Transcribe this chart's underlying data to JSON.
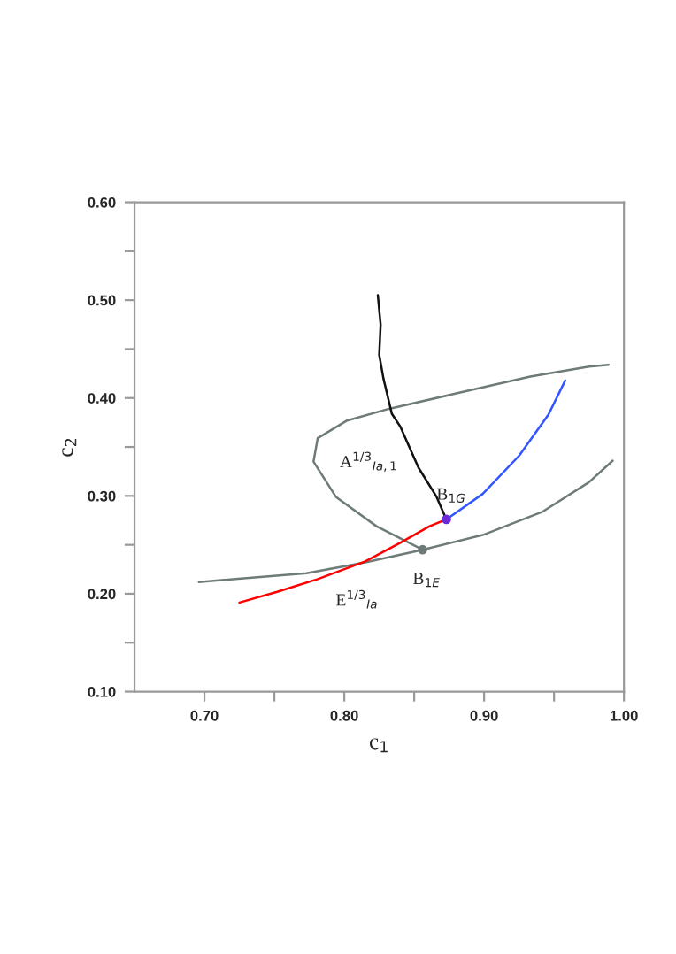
{
  "chart_data": {
    "type": "line",
    "xlabel": "c$_{1}$",
    "ylabel": "c$_{2}$",
    "xlim": [
      0.65,
      1.0
    ],
    "ylim": [
      0.1,
      0.6
    ],
    "xticks": [
      {
        "value": 0.7,
        "label": "0.70"
      },
      {
        "value": 0.75,
        "label": null
      },
      {
        "value": 0.8,
        "label": "0.80"
      },
      {
        "value": 0.85,
        "label": null
      },
      {
        "value": 0.9,
        "label": "0.90"
      },
      {
        "value": 0.95,
        "label": null
      },
      {
        "value": 1.0,
        "label": "1.00"
      }
    ],
    "yticks": [
      {
        "value": 0.1,
        "label": "0.10"
      },
      {
        "value": 0.15,
        "label": null
      },
      {
        "value": 0.2,
        "label": "0.20"
      },
      {
        "value": 0.25,
        "label": null
      },
      {
        "value": 0.3,
        "label": "0.30"
      },
      {
        "value": 0.35,
        "label": null
      },
      {
        "value": 0.4,
        "label": "0.40"
      },
      {
        "value": 0.45,
        "label": null
      },
      {
        "value": 0.5,
        "label": "0.50"
      },
      {
        "value": 0.55,
        "label": null
      },
      {
        "value": 0.6,
        "label": "0.60"
      }
    ],
    "grid": false,
    "legend": false,
    "series": [
      {
        "color": "#6e7b78",
        "x": [
          0.696,
          0.773,
          0.815,
          0.856,
          0.899,
          0.942,
          0.975,
          0.992
        ],
        "values": [
          0.212,
          0.221,
          0.232,
          0.245,
          0.26,
          0.284,
          0.314,
          0.336
        ]
      },
      {
        "color": "#6e7b78",
        "x": [
          0.856,
          0.823,
          0.794,
          0.778,
          0.781,
          0.802,
          0.832,
          0.878,
          0.933,
          0.975,
          0.989
        ],
        "values": [
          0.245,
          0.269,
          0.299,
          0.335,
          0.359,
          0.377,
          0.389,
          0.404,
          0.422,
          0.432,
          0.434
        ]
      },
      {
        "color": "#111111",
        "x": [
          0.824,
          0.826,
          0.825,
          0.828,
          0.834,
          0.84,
          0.853,
          0.866,
          0.873
        ],
        "values": [
          0.505,
          0.475,
          0.444,
          0.42,
          0.384,
          0.371,
          0.329,
          0.299,
          0.276
        ]
      },
      {
        "color": "#3355ff",
        "x": [
          0.873,
          0.899,
          0.925,
          0.946,
          0.958
        ],
        "values": [
          0.276,
          0.302,
          0.341,
          0.383,
          0.418
        ]
      },
      {
        "color": "#ff0000",
        "x": [
          0.725,
          0.752,
          0.781,
          0.815,
          0.84,
          0.861,
          0.873
        ],
        "values": [
          0.191,
          0.202,
          0.215,
          0.233,
          0.252,
          0.269,
          0.276
        ]
      },
      {
        "type": "scatter",
        "color": "#6e7b78",
        "x": [
          0.856
        ],
        "values": [
          0.245
        ]
      },
      {
        "type": "scatter",
        "color": "#6a2bd6",
        "x": [
          0.873
        ],
        "values": [
          0.276
        ]
      }
    ],
    "annotations": [
      {
        "text": "A$^{1/3}$$_{Ia,1}$",
        "x": 0.853,
        "y": 0.329
      },
      {
        "text": "B$_{1G}$",
        "x": 0.873,
        "y": 0.276
      },
      {
        "text": "B$_{1E}$",
        "x": 0.856,
        "y": 0.245
      },
      {
        "text": "E$^{1/3}$$_{Ia}$",
        "x": 0.815,
        "y": 0.233
      }
    ]
  }
}
